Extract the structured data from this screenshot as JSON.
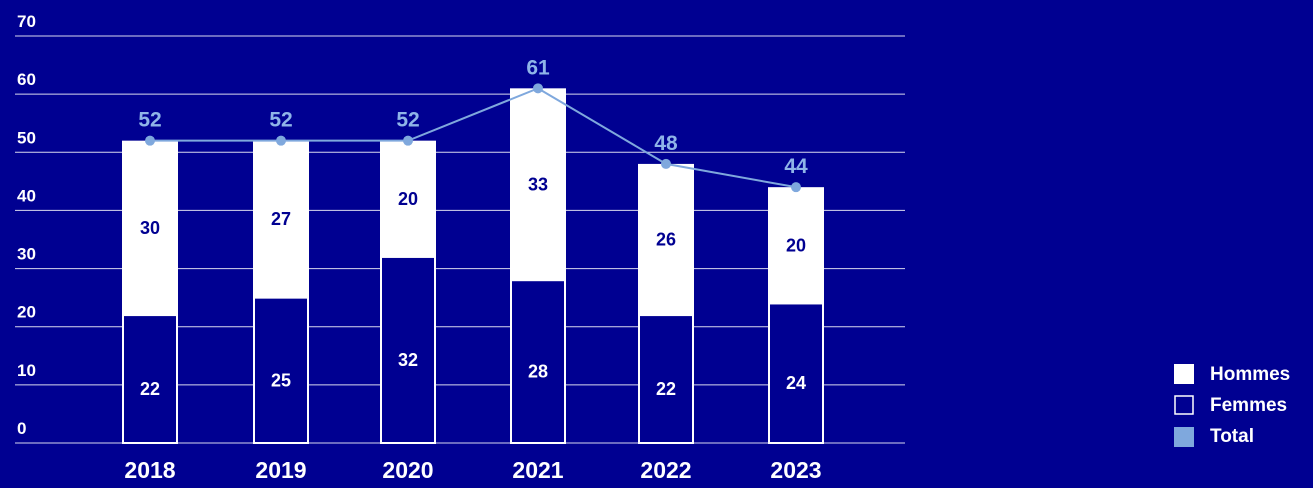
{
  "chart_data": {
    "type": "bar",
    "stacked": true,
    "categories": [
      "2018",
      "2019",
      "2020",
      "2021",
      "2022",
      "2023"
    ],
    "series": [
      {
        "name": "Femmes",
        "values": [
          22,
          25,
          32,
          28,
          22,
          24
        ],
        "fill": "#000091",
        "outline": "#ffffff"
      },
      {
        "name": "Hommes",
        "values": [
          30,
          27,
          20,
          33,
          26,
          20
        ],
        "fill": "#ffffff",
        "outline": "#ffffff"
      }
    ],
    "line_series": {
      "name": "Total",
      "values": [
        52,
        52,
        52,
        61,
        48,
        44
      ],
      "color": "#7fa8dd"
    },
    "y_ticks": [
      "0",
      "10",
      "20",
      "30",
      "40",
      "50",
      "60",
      "70"
    ],
    "ylim": [
      0,
      70
    ],
    "grid": true,
    "legend": {
      "placement": "bottom-right",
      "items": [
        {
          "label": "Hommes",
          "swatch": "solid-white"
        },
        {
          "label": "Femmes",
          "swatch": "outline-white"
        },
        {
          "label": "Total",
          "swatch": "solid-light-blue"
        }
      ]
    },
    "colors": {
      "background": "#000091",
      "grid": "#ffffff",
      "text": "#ffffff",
      "total_label": "#8fb4e8"
    }
  }
}
